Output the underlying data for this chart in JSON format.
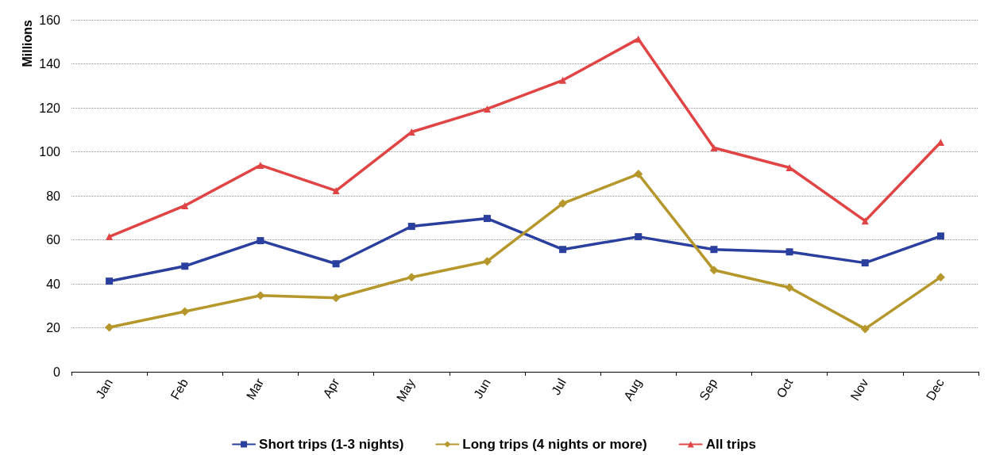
{
  "chart_data": {
    "type": "line",
    "ylabel": "Millions",
    "categories": [
      "Jan",
      "Feb",
      "Mar",
      "Apr",
      "May",
      "Jun",
      "Jul",
      "Aug",
      "Sep",
      "Oct",
      "Nov",
      "Dec"
    ],
    "series": [
      {
        "name": "Short trips (1-3 nights)",
        "color": "#2b3f9e",
        "marker": "square",
        "values": [
          41.2,
          48,
          59.6,
          49.1,
          66.1,
          69.7,
          55.6,
          61.4,
          55.6,
          54.5,
          49.5,
          61.7
        ]
      },
      {
        "name": "Long trips (4 nights or more)",
        "color": "#b5972b",
        "marker": "diamond",
        "values": [
          20.2,
          27.4,
          34.7,
          33.6,
          43,
          50.2,
          76.5,
          89.9,
          46.2,
          38.3,
          19.5,
          43
        ]
      },
      {
        "name": "All trips",
        "color": "#e04444",
        "marker": "triangle",
        "values": [
          61.4,
          75.5,
          93.9,
          82.3,
          109,
          119.5,
          132.5,
          151.3,
          101.8,
          92.8,
          68.6,
          104.3
        ]
      }
    ],
    "ylim": [
      0,
      160
    ],
    "yticks": [
      0,
      20,
      40,
      60,
      80,
      100,
      120,
      140,
      160
    ],
    "grid": "y",
    "legend": "bottom",
    "line_style": "solid"
  }
}
